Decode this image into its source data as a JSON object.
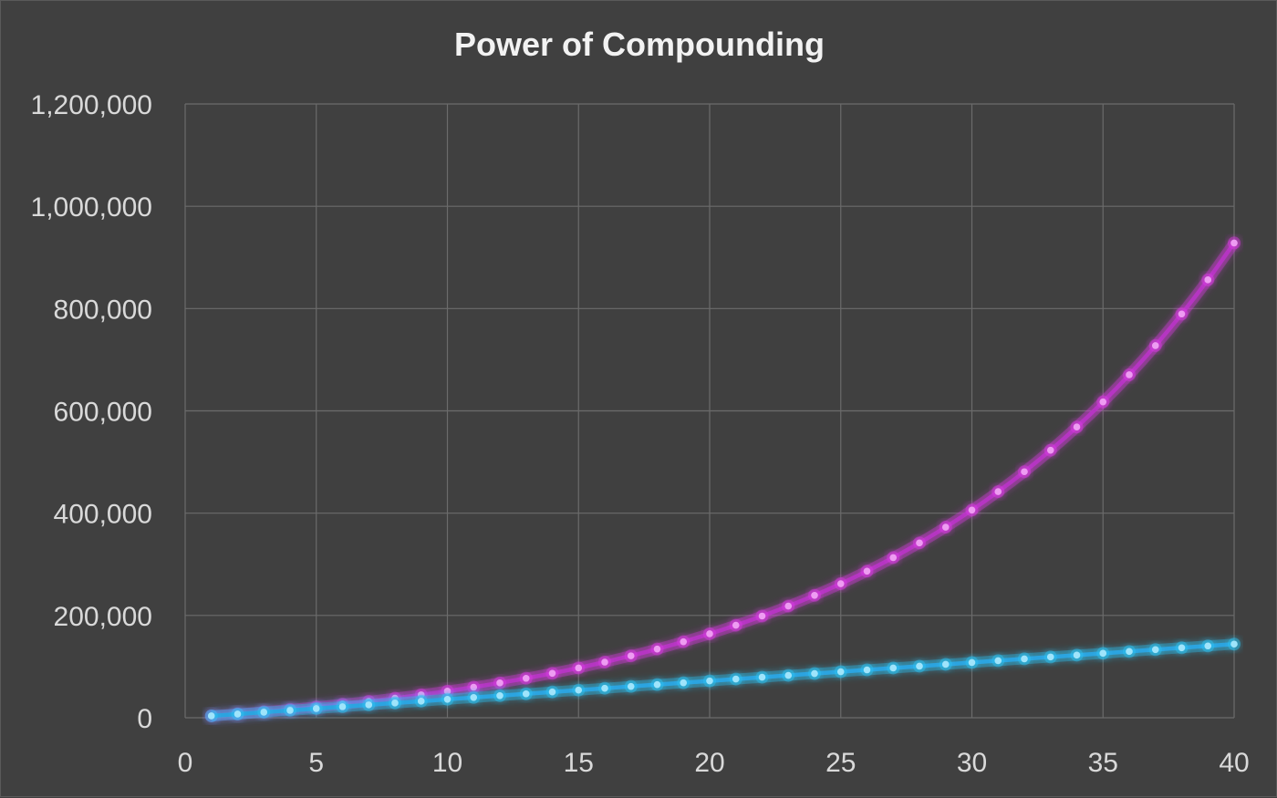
{
  "chart_data": {
    "type": "scatter",
    "title": "Power of Compounding",
    "xlabel": "",
    "ylabel": "",
    "xlim": [
      0,
      40
    ],
    "ylim": [
      0,
      1200000
    ],
    "x_ticks": [
      0,
      5,
      10,
      15,
      20,
      25,
      30,
      35,
      40
    ],
    "y_ticks": [
      0,
      200000,
      400000,
      600000,
      800000,
      1000000,
      1200000
    ],
    "x_tick_labels": [
      "0",
      "5",
      "10",
      "15",
      "20",
      "25",
      "30",
      "35",
      "40"
    ],
    "y_tick_labels": [
      "0",
      "200,000",
      "400,000",
      "600,000",
      "800,000",
      "1,000,000",
      "1,200,000"
    ],
    "grid": true,
    "legend": "none",
    "series": [
      {
        "color": "#b535c2",
        "marker_color": "#ee9cf2",
        "glow_color": "#d63ce0",
        "x": [
          1,
          2,
          3,
          4,
          5,
          6,
          7,
          8,
          9,
          10,
          11,
          12,
          13,
          14,
          15,
          16,
          17,
          18,
          19,
          20,
          21,
          22,
          23,
          24,
          25,
          26,
          27,
          28,
          29,
          30,
          31,
          32,
          33,
          34,
          35,
          36,
          37,
          38,
          39,
          40
        ],
        "y": [
          3600,
          7480,
          11660,
          16180,
          21060,
          26330,
          32020,
          38170,
          44810,
          51980,
          59720,
          68080,
          77110,
          86860,
          97390,
          108760,
          121040,
          134300,
          148620,
          164090,
          180790,
          198830,
          218300,
          239340,
          262060,
          286600,
          313100,
          341720,
          372630,
          406010,
          442070,
          481000,
          523050,
          568460,
          617500,
          670460,
          727660,
          789430,
          856150,
          928200
        ]
      },
      {
        "color": "#2ba4e0",
        "marker_color": "#9fe4fb",
        "glow_color": "#2fc0f0",
        "x": [
          1,
          2,
          3,
          4,
          5,
          6,
          7,
          8,
          9,
          10,
          11,
          12,
          13,
          14,
          15,
          16,
          17,
          18,
          19,
          20,
          21,
          22,
          23,
          24,
          25,
          26,
          27,
          28,
          29,
          30,
          31,
          32,
          33,
          34,
          35,
          36,
          37,
          38,
          39,
          40
        ],
        "y": [
          3600,
          7200,
          10800,
          14400,
          18000,
          21600,
          25200,
          28800,
          32400,
          36000,
          39600,
          43200,
          46800,
          50400,
          54000,
          57600,
          61200,
          64800,
          68400,
          72000,
          75600,
          79200,
          82800,
          86400,
          90000,
          93600,
          97200,
          100800,
          104400,
          108000,
          111600,
          115200,
          118800,
          122400,
          126000,
          129600,
          133200,
          136800,
          140400,
          144000
        ]
      }
    ]
  }
}
